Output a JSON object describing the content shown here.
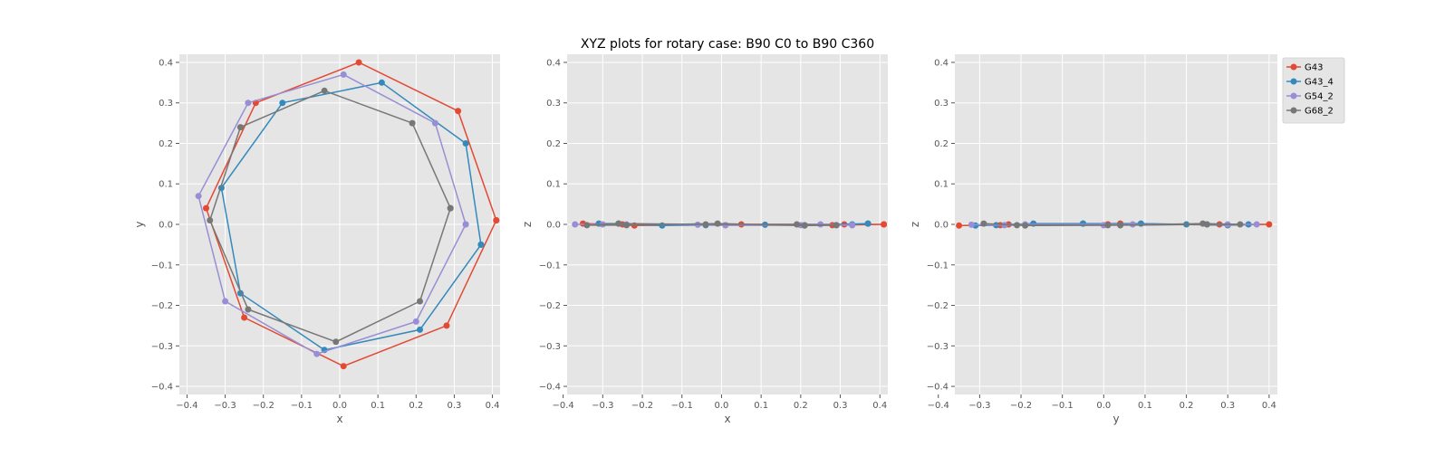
{
  "chart_data": {
    "type": "line",
    "title": "XYZ plots for rotary case: B90 C0 to B90 C360",
    "grid": true,
    "legend_position": "top-right",
    "legend_entries": [
      "G43",
      "G43_4",
      "G54_2",
      "G68_2"
    ],
    "colors": {
      "G43": "#E24A33",
      "G43_4": "#348ABD",
      "G54_2": "#988ED5",
      "G68_2": "#777777",
      "plot_background": "#E5E5E5",
      "grid": "#FFFFFF"
    },
    "subplots": [
      {
        "id": "xy",
        "xlabel": "x",
        "ylabel": "y",
        "xlim": [
          -0.42,
          0.42
        ],
        "ylim": [
          -0.42,
          0.42
        ],
        "xticks": [
          -0.4,
          -0.3,
          -0.2,
          -0.1,
          0.0,
          0.1,
          0.2,
          0.3,
          0.4
        ],
        "xtick_labels": [
          "−0.4",
          "−0.3",
          "−0.2",
          "−0.1",
          "0.0",
          "0.1",
          "0.2",
          "0.3",
          "0.4"
        ],
        "yticks": [
          -0.4,
          -0.3,
          -0.2,
          -0.1,
          0.0,
          0.1,
          0.2,
          0.3,
          0.4
        ],
        "ytick_labels": [
          "−0.4",
          "−0.3",
          "−0.2",
          "−0.1",
          "0.0",
          "0.1",
          "0.2",
          "0.3",
          "0.4"
        ],
        "series": [
          {
            "name": "G43",
            "points": [
              [
                0.41,
                0.01
              ],
              [
                0.31,
                0.28
              ],
              [
                0.05,
                0.4
              ],
              [
                -0.22,
                0.3
              ],
              [
                -0.35,
                0.04
              ],
              [
                -0.25,
                -0.23
              ],
              [
                0.01,
                -0.35
              ],
              [
                0.28,
                -0.25
              ],
              [
                0.41,
                0.01
              ]
            ]
          },
          {
            "name": "G43_4",
            "points": [
              [
                0.37,
                -0.05
              ],
              [
                0.33,
                0.2
              ],
              [
                0.11,
                0.35
              ],
              [
                -0.15,
                0.3
              ],
              [
                -0.31,
                0.09
              ],
              [
                -0.26,
                -0.17
              ],
              [
                -0.04,
                -0.31
              ],
              [
                0.21,
                -0.26
              ],
              [
                0.37,
                -0.05
              ]
            ]
          },
          {
            "name": "G54_2",
            "points": [
              [
                0.33,
                0.0
              ],
              [
                0.25,
                0.25
              ],
              [
                0.01,
                0.37
              ],
              [
                -0.24,
                0.3
              ],
              [
                -0.37,
                0.07
              ],
              [
                -0.3,
                -0.19
              ],
              [
                -0.06,
                -0.32
              ],
              [
                0.2,
                -0.24
              ],
              [
                0.33,
                0.0
              ]
            ]
          },
          {
            "name": "G68_2",
            "points": [
              [
                0.29,
                0.04
              ],
              [
                0.19,
                0.25
              ],
              [
                -0.04,
                0.33
              ],
              [
                -0.26,
                0.24
              ],
              [
                -0.34,
                0.01
              ],
              [
                -0.24,
                -0.21
              ],
              [
                -0.01,
                -0.29
              ],
              [
                0.21,
                -0.19
              ],
              [
                0.29,
                0.04
              ]
            ]
          }
        ]
      },
      {
        "id": "xz",
        "xlabel": "x",
        "ylabel": "z",
        "xlim": [
          -0.39,
          0.42
        ],
        "ylim": [
          -0.42,
          0.42
        ],
        "xticks": [
          -0.4,
          -0.3,
          -0.2,
          -0.1,
          0.0,
          0.1,
          0.2,
          0.3,
          0.4
        ],
        "xtick_labels": [
          "−0.4",
          "−0.3",
          "−0.2",
          "−0.1",
          "0.0",
          "0.1",
          "0.2",
          "0.3",
          "0.4"
        ],
        "yticks": [
          -0.4,
          -0.3,
          -0.2,
          -0.1,
          0.0,
          0.1,
          0.2,
          0.3,
          0.4
        ],
        "ytick_labels": [
          "−0.4",
          "−0.3",
          "−0.2",
          "−0.1",
          "0.0",
          "0.1",
          "0.2",
          "0.3",
          "0.4"
        ],
        "series": [
          {
            "name": "G43",
            "points": [
              [
                0.41,
                0.0
              ],
              [
                0.31,
                0.0
              ],
              [
                0.05,
                0.0
              ],
              [
                -0.22,
                -0.003
              ],
              [
                -0.35,
                0.002
              ],
              [
                -0.25,
                0.0
              ],
              [
                0.01,
                -0.002
              ],
              [
                0.28,
                -0.002
              ],
              [
                0.41,
                0.0
              ]
            ]
          },
          {
            "name": "G43_4",
            "points": [
              [
                0.37,
                0.002
              ],
              [
                0.33,
                0.0
              ],
              [
                0.11,
                -0.001
              ],
              [
                -0.15,
                -0.003
              ],
              [
                -0.31,
                0.002
              ],
              [
                -0.26,
                0.002
              ],
              [
                -0.04,
                -0.002
              ],
              [
                0.21,
                -0.002
              ],
              [
                0.37,
                0.002
              ]
            ]
          },
          {
            "name": "G54_2",
            "points": [
              [
                0.33,
                -0.002
              ],
              [
                0.25,
                0.0
              ],
              [
                0.01,
                -0.002
              ],
              [
                -0.24,
                0.0
              ],
              [
                -0.37,
                0.0
              ],
              [
                -0.3,
                0.0
              ],
              [
                -0.06,
                -0.001
              ],
              [
                0.2,
                -0.002
              ],
              [
                0.33,
                -0.002
              ]
            ]
          },
          {
            "name": "G68_2",
            "points": [
              [
                0.29,
                -0.002
              ],
              [
                0.19,
                0.0
              ],
              [
                -0.04,
                0.0
              ],
              [
                -0.26,
                0.002
              ],
              [
                -0.34,
                -0.002
              ],
              [
                -0.24,
                -0.002
              ],
              [
                -0.01,
                0.002
              ],
              [
                0.21,
                -0.003
              ],
              [
                0.29,
                -0.002
              ]
            ]
          }
        ]
      },
      {
        "id": "yz",
        "xlabel": "y",
        "ylabel": "z",
        "xlim": [
          -0.36,
          0.42
        ],
        "ylim": [
          -0.42,
          0.42
        ],
        "xticks": [
          -0.4,
          -0.3,
          -0.2,
          -0.1,
          0.0,
          0.1,
          0.2,
          0.3,
          0.4
        ],
        "xtick_labels": [
          "−0.4",
          "−0.3",
          "−0.2",
          "−0.1",
          "0.0",
          "0.1",
          "0.2",
          "0.3",
          "0.4"
        ],
        "yticks": [
          -0.4,
          -0.3,
          -0.2,
          -0.1,
          0.0,
          0.1,
          0.2,
          0.3,
          0.4
        ],
        "ytick_labels": [
          "−0.4",
          "−0.3",
          "−0.2",
          "−0.1",
          "0.0",
          "0.1",
          "0.2",
          "0.3",
          "0.4"
        ],
        "series": [
          {
            "name": "G43",
            "points": [
              [
                0.01,
                0.0
              ],
              [
                0.28,
                0.0
              ],
              [
                0.4,
                0.0
              ],
              [
                0.3,
                -0.002
              ],
              [
                0.04,
                0.002
              ],
              [
                -0.23,
                0.0
              ],
              [
                -0.35,
                -0.003
              ],
              [
                -0.25,
                -0.002
              ],
              [
                0.01,
                0.0
              ]
            ]
          },
          {
            "name": "G43_4",
            "points": [
              [
                -0.05,
                0.002
              ],
              [
                0.2,
                0.0
              ],
              [
                0.35,
                0.0
              ],
              [
                0.3,
                -0.002
              ],
              [
                0.09,
                0.002
              ],
              [
                -0.17,
                0.002
              ],
              [
                -0.31,
                -0.003
              ],
              [
                -0.26,
                -0.002
              ],
              [
                -0.05,
                0.002
              ]
            ]
          },
          {
            "name": "G54_2",
            "points": [
              [
                0.0,
                -0.002
              ],
              [
                0.25,
                0.0
              ],
              [
                0.37,
                0.0
              ],
              [
                0.3,
                0.0
              ],
              [
                0.07,
                0.0
              ],
              [
                -0.19,
                0.0
              ],
              [
                -0.32,
                -0.001
              ],
              [
                -0.24,
                -0.002
              ],
              [
                0.0,
                -0.002
              ]
            ]
          },
          {
            "name": "G68_2",
            "points": [
              [
                0.04,
                -0.002
              ],
              [
                0.25,
                0.0
              ],
              [
                0.33,
                0.0
              ],
              [
                0.24,
                0.002
              ],
              [
                0.01,
                -0.002
              ],
              [
                -0.21,
                -0.002
              ],
              [
                -0.29,
                0.002
              ],
              [
                -0.19,
                -0.003
              ],
              [
                0.04,
                -0.002
              ]
            ]
          }
        ]
      }
    ]
  }
}
